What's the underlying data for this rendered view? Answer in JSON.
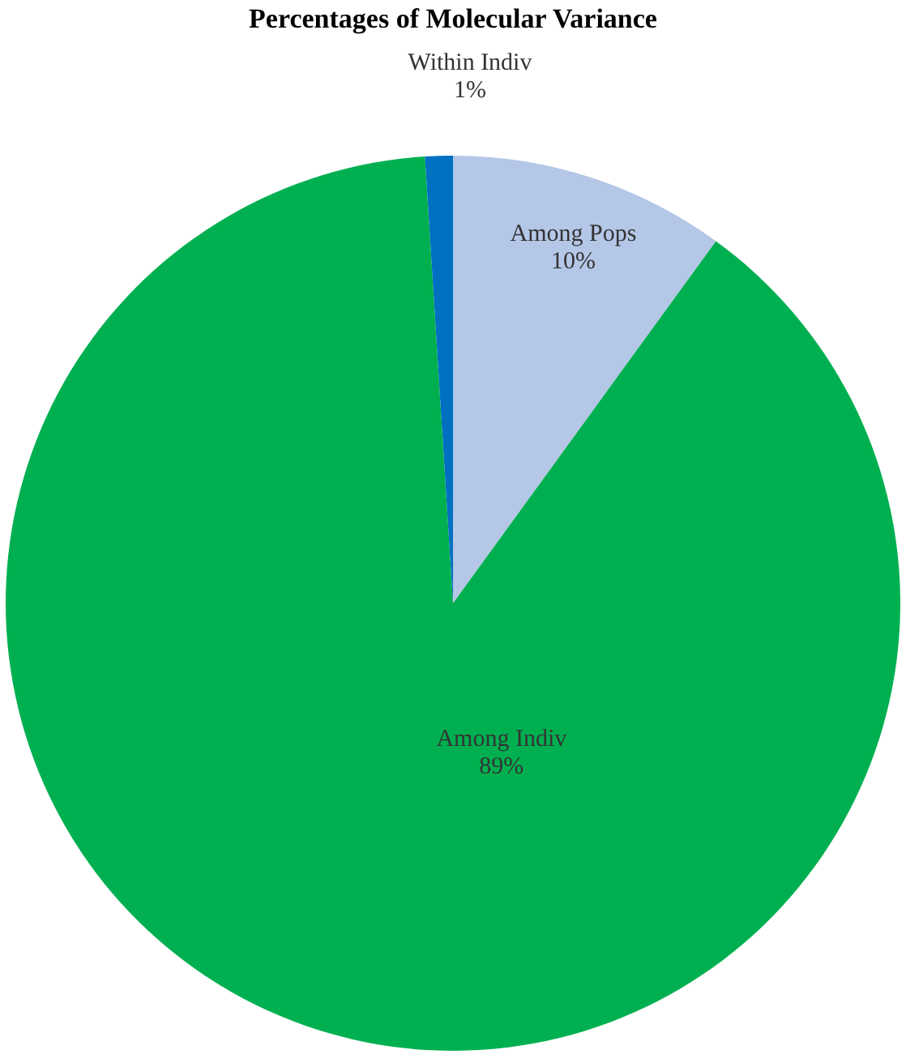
{
  "chart_data": {
    "type": "pie",
    "title": "Percentages of Molecular Variance",
    "categories": [
      "Among Pops",
      "Among Indiv",
      "Within Indiv"
    ],
    "values": [
      10,
      89,
      1
    ],
    "colors": [
      "#b4c7e7",
      "#00b050",
      "#0070c0"
    ],
    "value_labels": [
      "10%",
      "89%",
      "1%"
    ],
    "legend": false
  }
}
